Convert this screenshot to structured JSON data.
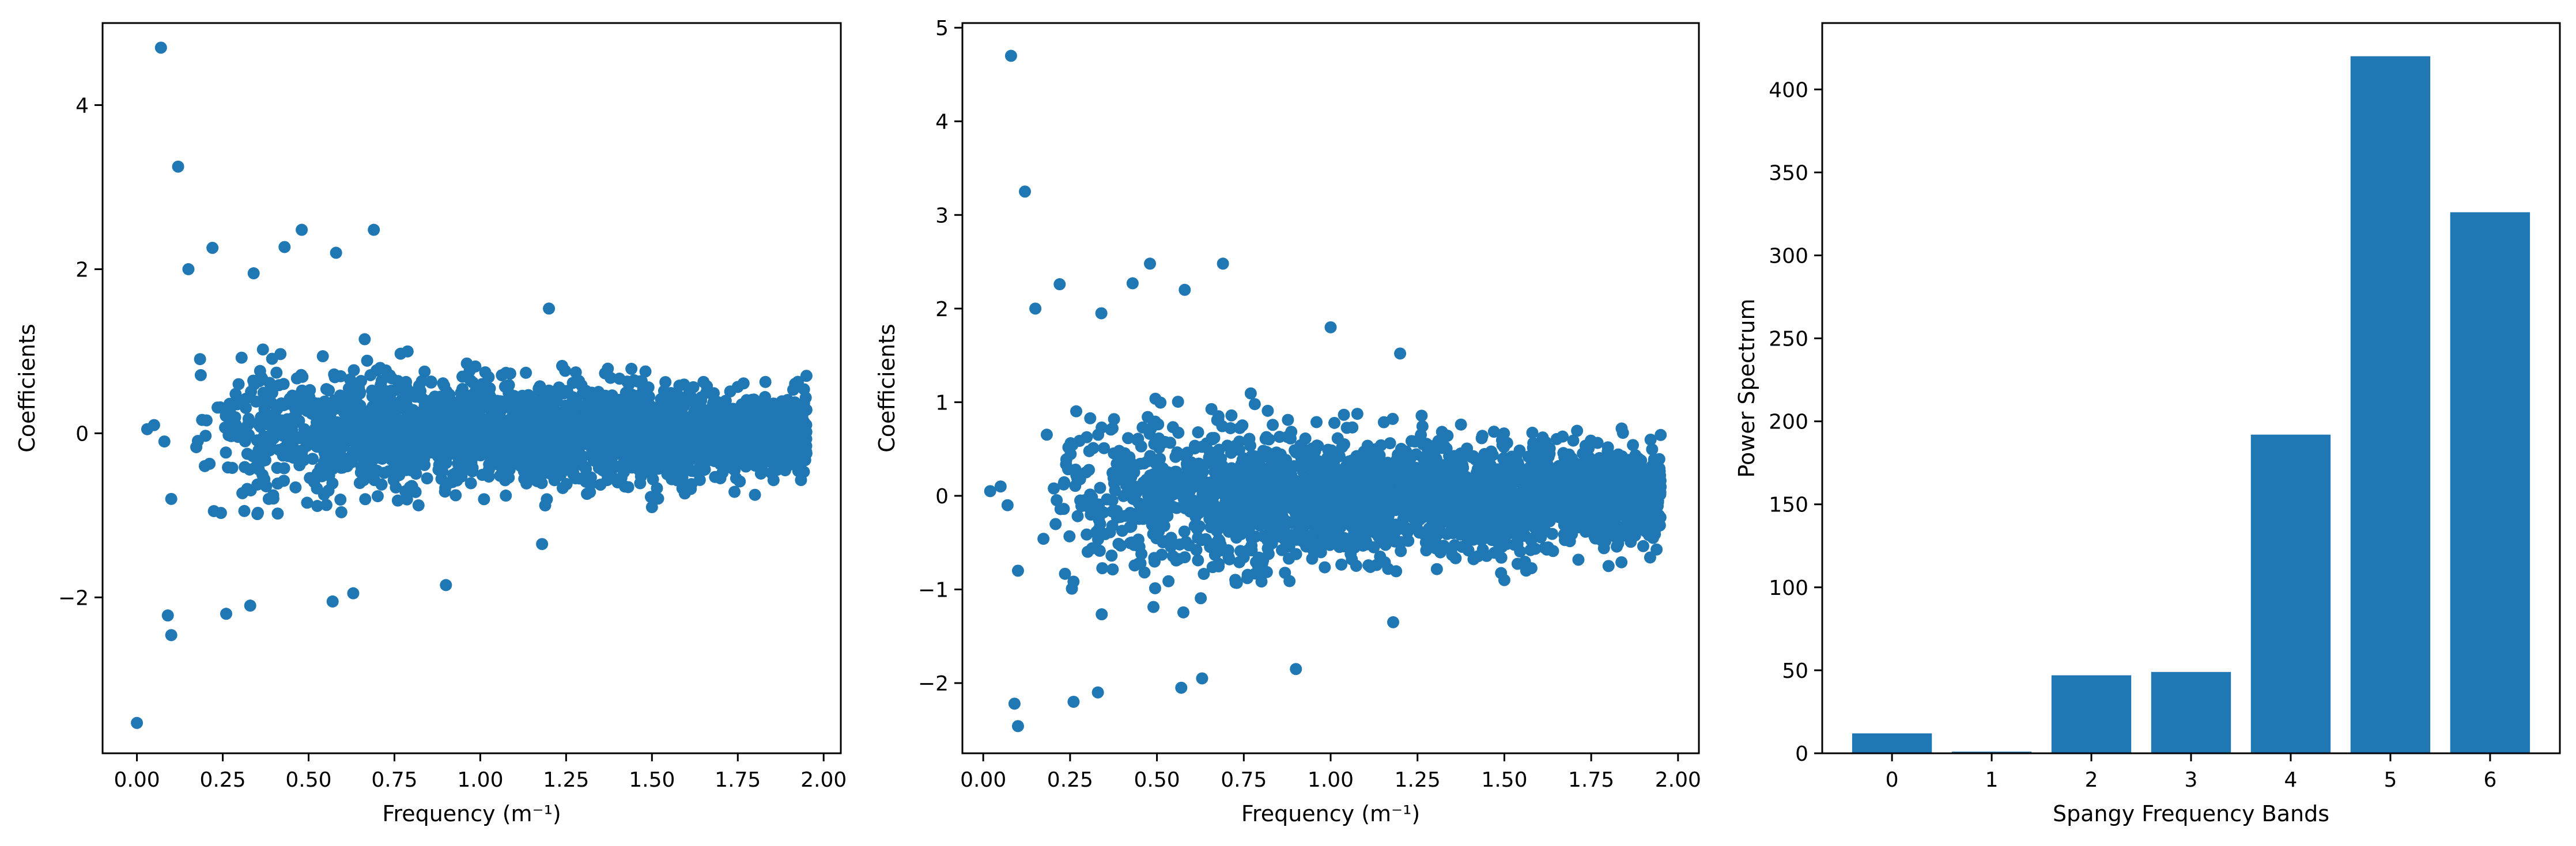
{
  "chart_data": [
    {
      "type": "scatter",
      "title": "",
      "xlabel": "Frequency (m⁻¹)",
      "ylabel": "Coefficients",
      "xlim": [
        -0.1,
        2.05
      ],
      "ylim": [
        -3.9,
        5.0
      ],
      "xticks": [
        "0.00",
        "0.25",
        "0.50",
        "0.75",
        "1.00",
        "1.25",
        "1.50",
        "1.75",
        "2.00"
      ],
      "yticks": [
        "−2",
        "0",
        "2",
        "4"
      ],
      "grid": false,
      "color": "#1f77b4",
      "points": [
        [
          0.0,
          -3.53
        ],
        [
          0.07,
          4.7
        ],
        [
          0.12,
          3.25
        ],
        [
          0.09,
          -2.22
        ],
        [
          0.1,
          -2.46
        ],
        [
          0.22,
          2.26
        ],
        [
          0.48,
          2.48
        ],
        [
          0.69,
          2.48
        ],
        [
          0.15,
          2.0
        ],
        [
          0.34,
          1.95
        ],
        [
          0.43,
          2.27
        ],
        [
          0.58,
          2.2
        ],
        [
          1.2,
          1.52
        ],
        [
          0.03,
          0.05
        ],
        [
          0.05,
          0.1
        ],
        [
          0.08,
          -0.1
        ],
        [
          0.1,
          -0.8
        ],
        [
          0.26,
          -2.2
        ],
        [
          0.33,
          -2.1
        ],
        [
          0.57,
          -2.05
        ],
        [
          0.63,
          -1.95
        ],
        [
          0.9,
          -1.85
        ],
        [
          1.18,
          -1.35
        ],
        [
          1.5,
          -0.9
        ],
        [
          1.8,
          -0.75
        ],
        [
          1.95,
          0.7
        ]
      ],
      "envelope": {
        "x_start": 0.15,
        "x_end": 1.95,
        "amp_start": 1.3,
        "amp_end": 0.55,
        "count": 2600,
        "seed": 7
      }
    },
    {
      "type": "scatter",
      "title": "",
      "xlabel": "Frequency (m⁻¹)",
      "ylabel": "Coefficients",
      "xlim": [
        -0.06,
        2.06
      ],
      "ylim": [
        -2.75,
        5.05
      ],
      "xticks": [
        "0.00",
        "0.25",
        "0.50",
        "0.75",
        "1.00",
        "1.25",
        "1.50",
        "1.75",
        "2.00"
      ],
      "yticks": [
        "−2",
        "−1",
        "0",
        "1",
        "2",
        "3",
        "4",
        "5"
      ],
      "grid": false,
      "color": "#1f77b4",
      "points": [
        [
          0.08,
          4.7
        ],
        [
          0.12,
          3.25
        ],
        [
          0.09,
          -2.22
        ],
        [
          0.1,
          -2.46
        ],
        [
          0.22,
          2.26
        ],
        [
          0.48,
          2.48
        ],
        [
          0.69,
          2.48
        ],
        [
          0.15,
          2.0
        ],
        [
          0.34,
          1.95
        ],
        [
          0.43,
          2.27
        ],
        [
          0.58,
          2.2
        ],
        [
          1.2,
          1.52
        ],
        [
          1.0,
          1.8
        ],
        [
          0.02,
          0.05
        ],
        [
          0.05,
          0.1
        ],
        [
          0.07,
          -0.1
        ],
        [
          0.1,
          -0.8
        ],
        [
          0.26,
          -2.2
        ],
        [
          0.33,
          -2.1
        ],
        [
          0.57,
          -2.05
        ],
        [
          0.63,
          -1.95
        ],
        [
          0.9,
          -1.85
        ],
        [
          1.18,
          -1.35
        ],
        [
          1.5,
          -0.9
        ],
        [
          1.8,
          -0.75
        ],
        [
          1.95,
          0.65
        ]
      ],
      "envelope": {
        "x_start": 0.15,
        "x_end": 1.95,
        "amp_start": 1.3,
        "amp_end": 0.55,
        "count": 2600,
        "seed": 11
      }
    },
    {
      "type": "bar",
      "title": "",
      "xlabel": "Spangy Frequency Bands",
      "ylabel": "Power Spectrum",
      "categories": [
        "0",
        "1",
        "2",
        "3",
        "4",
        "5",
        "6"
      ],
      "values": [
        12,
        1,
        47,
        49,
        192,
        420,
        326
      ],
      "ylim": [
        0,
        440
      ],
      "yticks": [
        "0",
        "50",
        "100",
        "150",
        "200",
        "250",
        "300",
        "350",
        "400"
      ],
      "grid": false,
      "color": "#1f77b4"
    }
  ]
}
